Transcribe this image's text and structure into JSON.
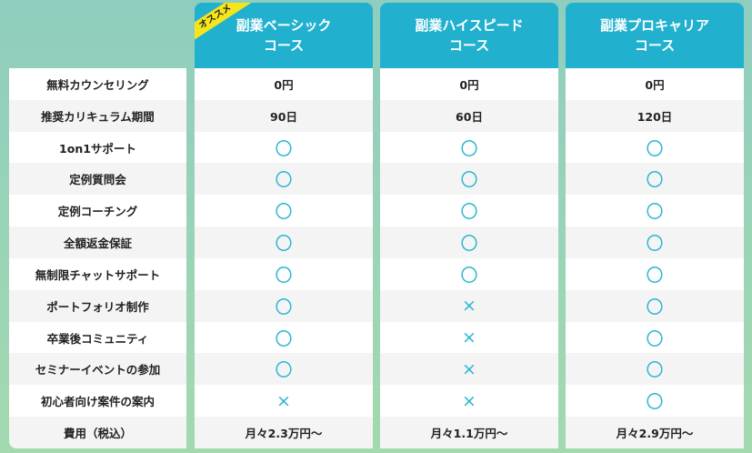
{
  "colors": {
    "header": "#21b1cf",
    "mark": "#29b6d3",
    "badge": "#f7e51b"
  },
  "features": [
    "無料カウンセリング",
    "推奨カリキュラム期間",
    "1on1サポート",
    "定例質問会",
    "定例コーチング",
    "全額返金保証",
    "無制限チャットサポート",
    "ポートフォリオ制作",
    "卒業後コミュニティ",
    "セミナーイベントの参加",
    "初心者向け案件の案内",
    "費用（税込）"
  ],
  "courses": [
    {
      "title_line1": "副業ベーシック",
      "title_line2": "コース",
      "badge": "オススメ",
      "values": [
        "0円",
        "90日",
        "〇",
        "〇",
        "〇",
        "〇",
        "〇",
        "〇",
        "〇",
        "〇",
        "×",
        "月々2.3万円〜"
      ]
    },
    {
      "title_line1": "副業ハイスピード",
      "title_line2": "コース",
      "values": [
        "0円",
        "60日",
        "〇",
        "〇",
        "〇",
        "〇",
        "〇",
        "×",
        "×",
        "×",
        "×",
        "月々1.1万円〜"
      ]
    },
    {
      "title_line1": "副業プロキャリア",
      "title_line2": "コース",
      "values": [
        "0円",
        "120日",
        "〇",
        "〇",
        "〇",
        "〇",
        "〇",
        "〇",
        "〇",
        "〇",
        "〇",
        "月々2.9万円〜"
      ]
    }
  ]
}
